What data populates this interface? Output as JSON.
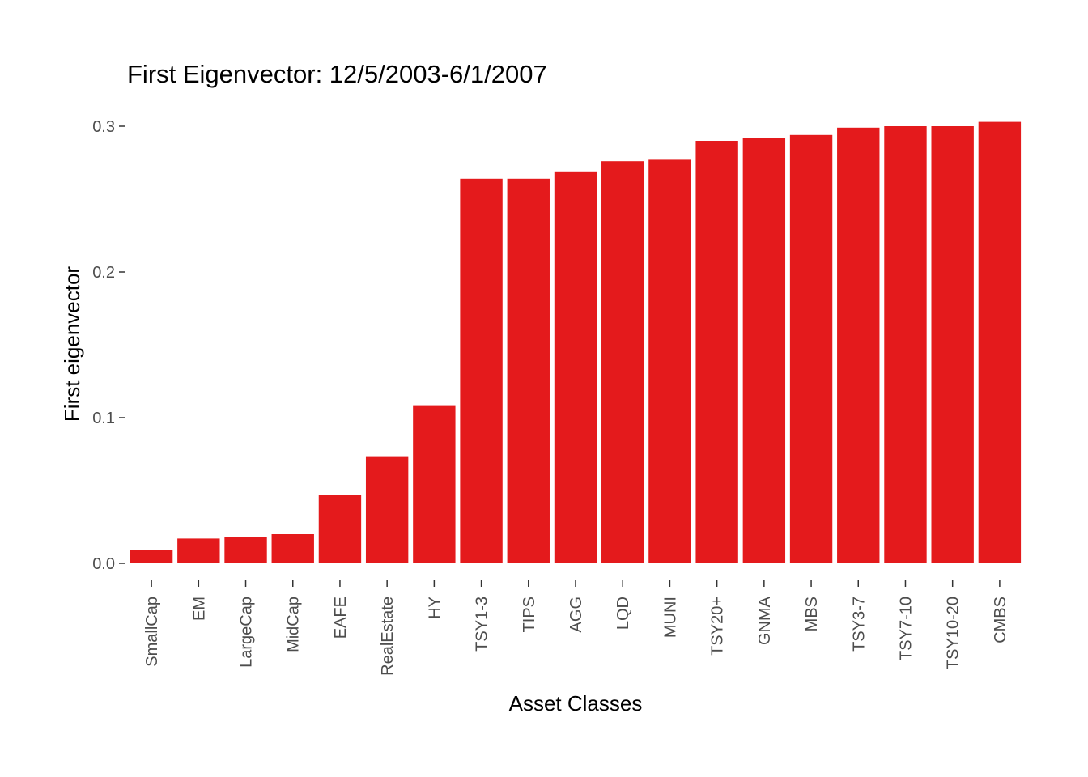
{
  "chart_data": {
    "type": "bar",
    "title": "First Eigenvector: 12/5/2003-6/1/2007",
    "xlabel": "Asset Classes",
    "ylabel": "First eigenvector",
    "categories": [
      "SmallCap",
      "EM",
      "LargeCap",
      "MidCap",
      "EAFE",
      "RealEstate",
      "HY",
      "TSY1-3",
      "TIPS",
      "AGG",
      "LQD",
      "MUNI",
      "TSY20+",
      "GNMA",
      "MBS",
      "TSY3-7",
      "TSY7-10",
      "TSY10-20",
      "CMBS"
    ],
    "values": [
      0.009,
      0.017,
      0.018,
      0.02,
      0.047,
      0.073,
      0.108,
      0.264,
      0.264,
      0.269,
      0.276,
      0.277,
      0.29,
      0.292,
      0.294,
      0.299,
      0.3,
      0.3,
      0.303
    ],
    "ylim": [
      0,
      0.3
    ],
    "yticks": [
      0.0,
      0.1,
      0.2,
      0.3
    ],
    "ytick_labels": [
      "0.0",
      "0.1",
      "0.2",
      "0.3"
    ],
    "bar_color": "#E41A1C",
    "grid": false,
    "legend": "none"
  }
}
